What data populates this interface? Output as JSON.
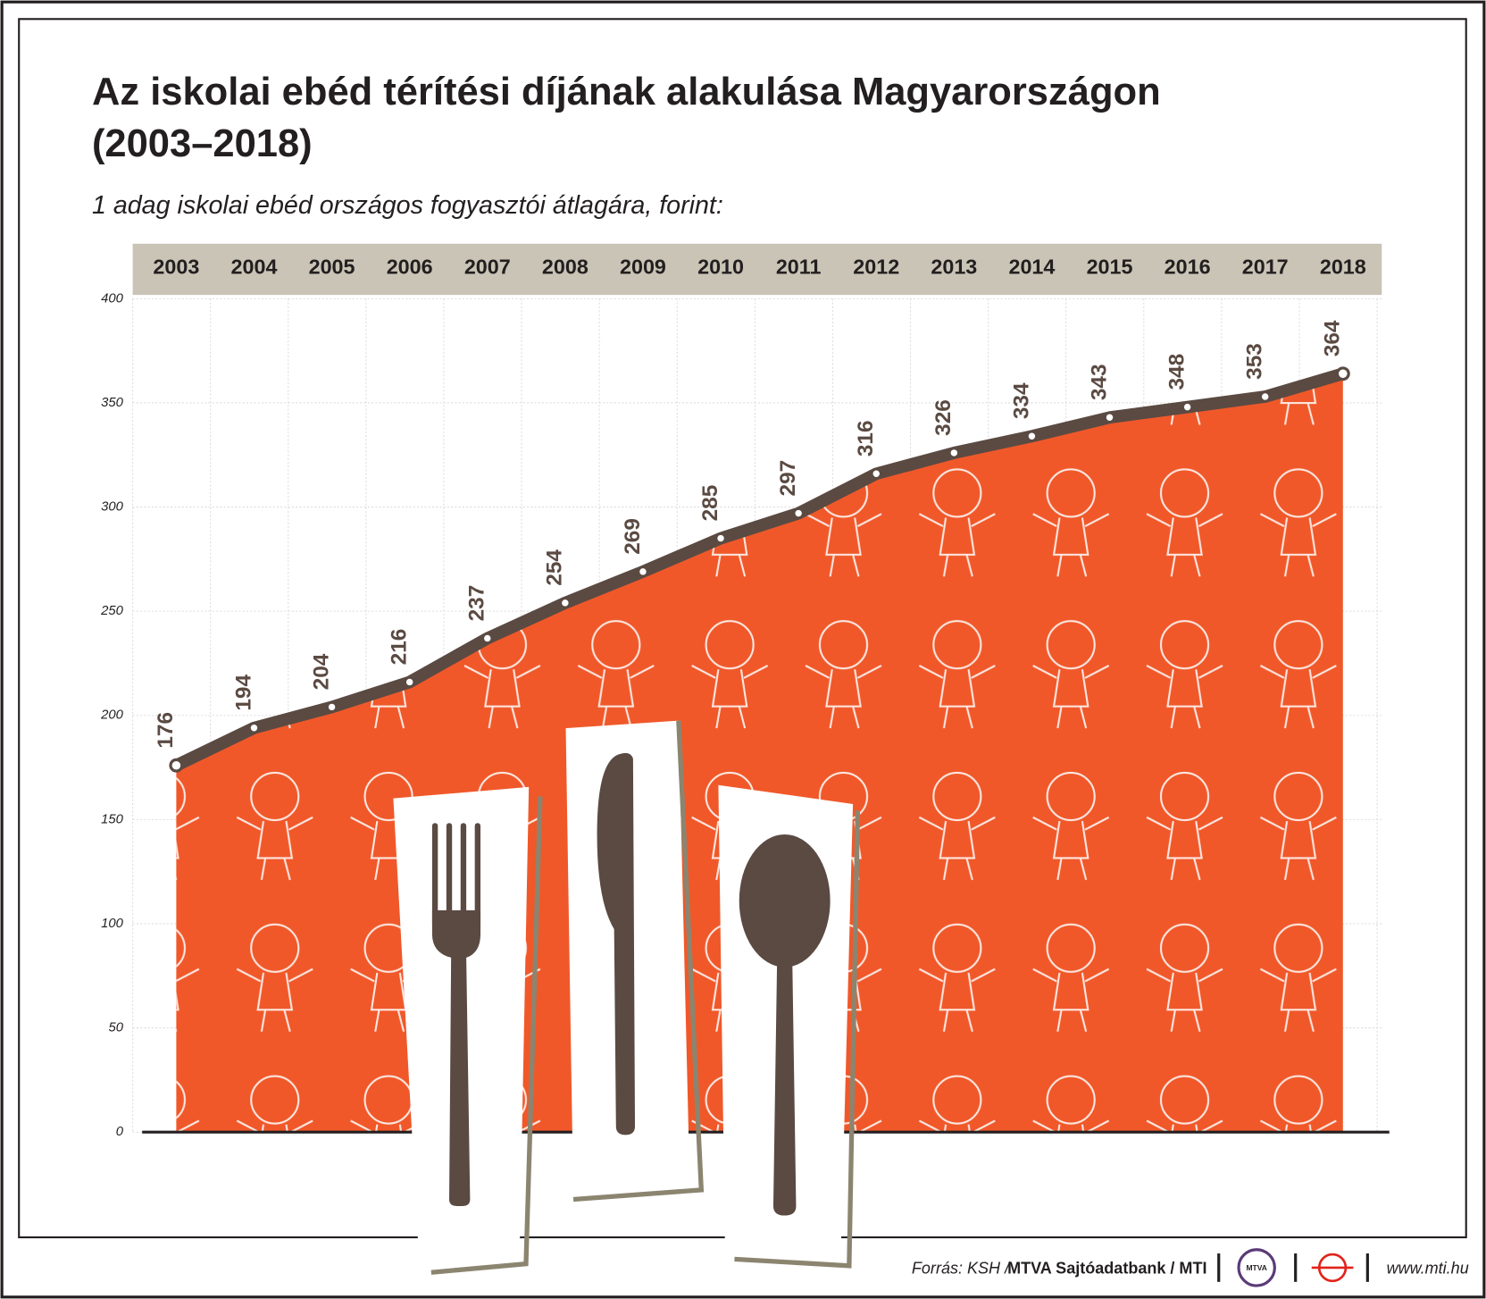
{
  "chart_data": {
    "type": "area",
    "title": "Az iskolai ebéd térítési díjának alakulása Magyarországon",
    "title_line2": "(2003–2018)",
    "subtitle": "1 adag iskolai ebéd országos fogyasztói átlagára, forint:",
    "categories": [
      "2003",
      "2004",
      "2005",
      "2006",
      "2007",
      "2008",
      "2009",
      "2010",
      "2011",
      "2012",
      "2013",
      "2014",
      "2015",
      "2016",
      "2017",
      "2018"
    ],
    "values": [
      176,
      194,
      204,
      216,
      237,
      254,
      269,
      285,
      297,
      316,
      326,
      334,
      343,
      348,
      353,
      364
    ],
    "color": "#f0582a",
    "line_color": "#5a4a42",
    "ylim": [
      0,
      400
    ],
    "yticks": [
      0,
      50,
      100,
      150,
      200,
      250,
      300,
      350,
      400
    ],
    "grid": true,
    "source_prefix": "Forrás: KSH /",
    "source_bold": "MTVA Sajtóadatbank / MTI",
    "logo_text": "MTVA",
    "website": "www.mti.hu"
  }
}
